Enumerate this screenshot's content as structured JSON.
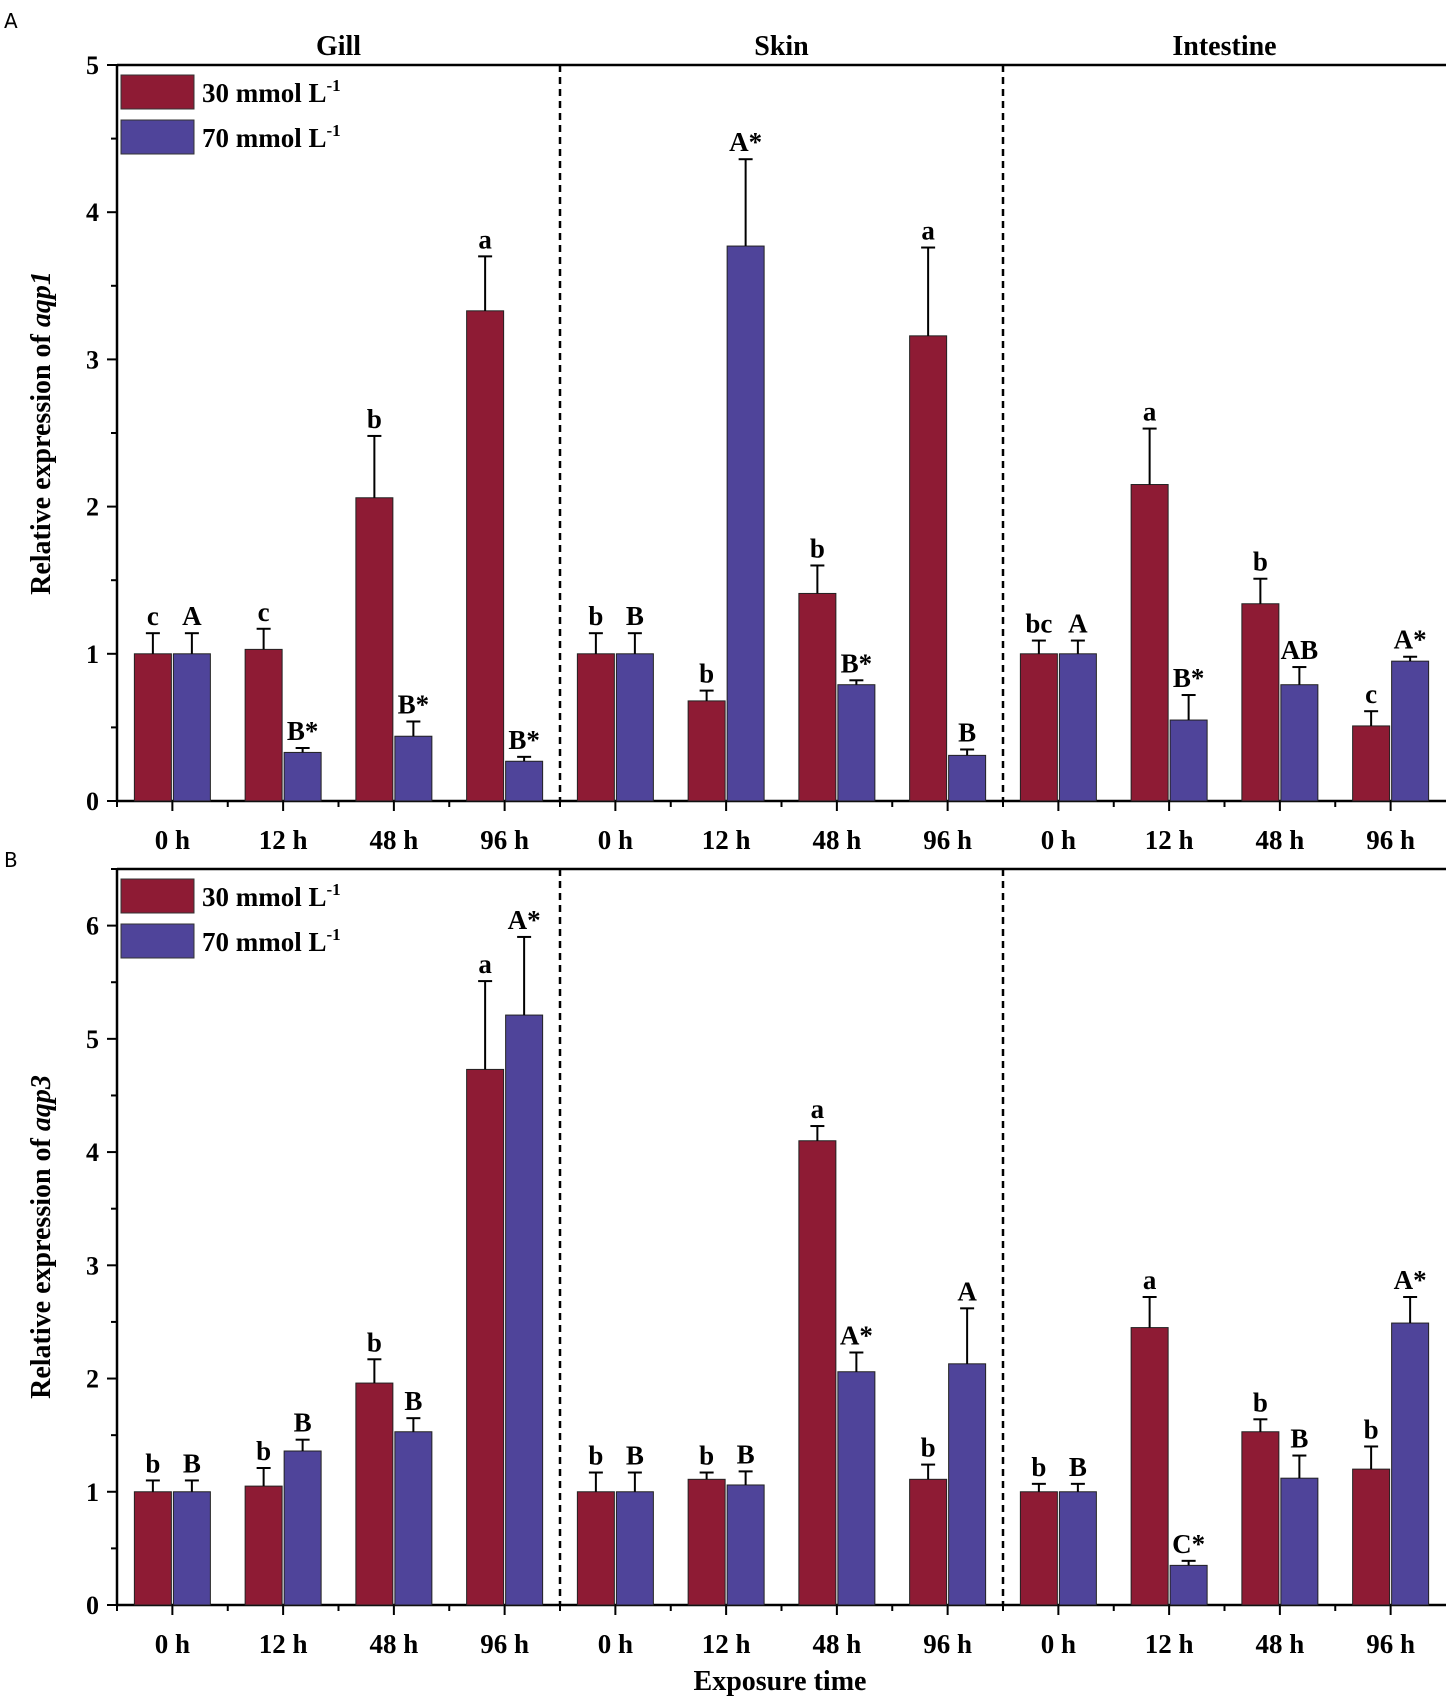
{
  "colors": {
    "s30": "#8E1B34",
    "s70": "#4F449A",
    "axis": "#000000"
  },
  "chart_data": [
    {
      "panel_label": "A",
      "type": "bar",
      "title": "",
      "xlabel": "",
      "ylabel_prefix": "Relative expression of ",
      "ylabel_gene": "aqp1",
      "ylim": [
        0,
        5
      ],
      "yticks": [
        0,
        1,
        2,
        3,
        4,
        5
      ],
      "groups": [
        "Gill",
        "Skin",
        "Intestine"
      ],
      "categories": [
        "0 h",
        "12 h",
        "48 h",
        "96 h"
      ],
      "legend": [
        "30 mmol L",
        "70 mmol L"
      ],
      "legend_superscript": "-1",
      "series": [
        {
          "name": "30 mmol L-1",
          "values": [
            [
              1.0,
              1.03,
              2.06,
              3.33
            ],
            [
              1.0,
              0.68,
              1.41,
              3.16
            ],
            [
              1.0,
              2.15,
              1.34,
              0.51
            ]
          ],
          "errors": [
            [
              0.14,
              0.14,
              0.42,
              0.37
            ],
            [
              0.14,
              0.07,
              0.19,
              0.6
            ],
            [
              0.09,
              0.38,
              0.17,
              0.1
            ]
          ],
          "labels": [
            [
              "c",
              "c",
              "b",
              "a"
            ],
            [
              "b",
              "b",
              "b",
              "a"
            ],
            [
              "bc",
              "a",
              "b",
              "c"
            ]
          ]
        },
        {
          "name": "70 mmol L-1",
          "values": [
            [
              1.0,
              0.33,
              0.44,
              0.27
            ],
            [
              1.0,
              3.77,
              0.79,
              0.31
            ],
            [
              1.0,
              0.55,
              0.79,
              0.95
            ]
          ],
          "errors": [
            [
              0.14,
              0.03,
              0.1,
              0.03
            ],
            [
              0.14,
              0.59,
              0.03,
              0.04
            ],
            [
              0.09,
              0.17,
              0.12,
              0.03
            ]
          ],
          "labels": [
            [
              "A",
              "B*",
              "B*",
              "B*"
            ],
            [
              "B",
              "A*",
              "B*",
              "B"
            ],
            [
              "A",
              "B*",
              "AB",
              "A*"
            ]
          ]
        }
      ]
    },
    {
      "panel_label": "B",
      "type": "bar",
      "title": "",
      "xlabel": "Exposure time",
      "ylabel_prefix": "Relative expression of ",
      "ylabel_gene": "aqp3",
      "ylim": [
        0,
        6.5
      ],
      "yticks": [
        0,
        1,
        2,
        3,
        4,
        5,
        6
      ],
      "groups": [
        "Gill",
        "Skin",
        "Intestine"
      ],
      "categories": [
        "0 h",
        "12 h",
        "48 h",
        "96 h"
      ],
      "legend": [
        "30 mmol L",
        "70 mmol L"
      ],
      "legend_superscript": "-1",
      "series": [
        {
          "name": "30 mmol L-1",
          "values": [
            [
              1.0,
              1.05,
              1.96,
              4.73
            ],
            [
              1.0,
              1.11,
              4.1,
              1.11
            ],
            [
              1.0,
              2.45,
              1.53,
              1.2
            ]
          ],
          "errors": [
            [
              0.1,
              0.16,
              0.21,
              0.78
            ],
            [
              0.17,
              0.06,
              0.13,
              0.13
            ],
            [
              0.07,
              0.27,
              0.11,
              0.2
            ]
          ],
          "labels": [
            [
              "b",
              "b",
              "b",
              "a"
            ],
            [
              "b",
              "b",
              "a",
              "b"
            ],
            [
              "b",
              "a",
              "b",
              "b"
            ]
          ]
        },
        {
          "name": "70 mmol L-1",
          "values": [
            [
              1.0,
              1.36,
              1.53,
              5.21
            ],
            [
              1.0,
              1.06,
              2.06,
              2.13
            ],
            [
              1.0,
              0.35,
              1.12,
              2.49
            ]
          ],
          "errors": [
            [
              0.1,
              0.1,
              0.12,
              0.69
            ],
            [
              0.17,
              0.12,
              0.17,
              0.49
            ],
            [
              0.07,
              0.04,
              0.2,
              0.23
            ]
          ],
          "labels": [
            [
              "B",
              "B",
              "B",
              "A*"
            ],
            [
              "B",
              "B",
              "A*",
              "A"
            ],
            [
              "B",
              "C*",
              "B",
              "A*"
            ]
          ]
        }
      ]
    }
  ]
}
